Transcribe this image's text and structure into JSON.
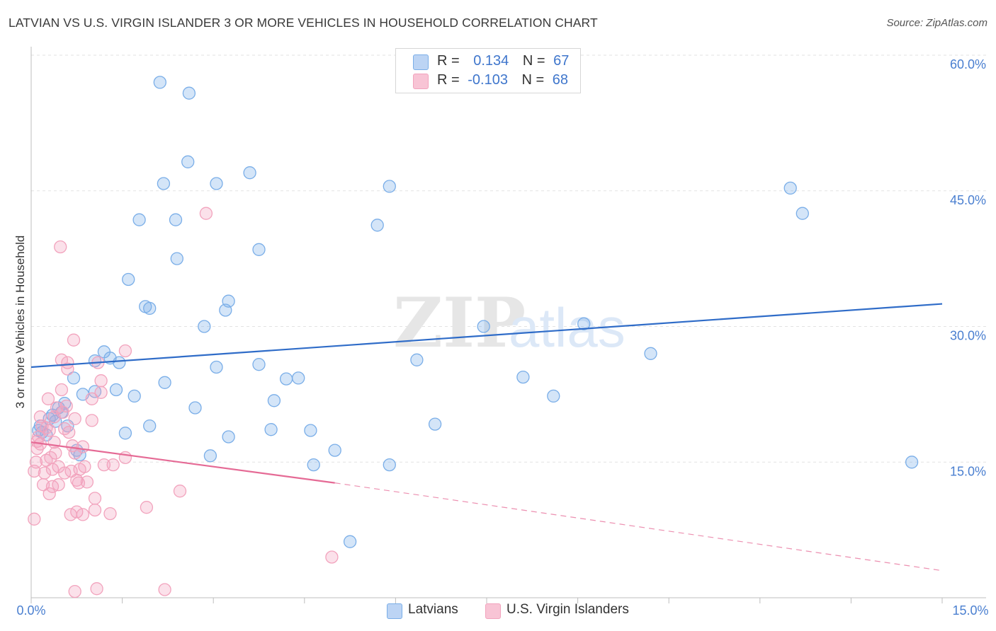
{
  "chart_data": {
    "type": "scatter",
    "title": "LATVIAN VS U.S. VIRGIN ISLANDER 3 OR MORE VEHICLES IN HOUSEHOLD CORRELATION CHART",
    "source": "Source: ZipAtlas.com",
    "xlabel": "",
    "ylabel": "3 or more Vehicles in Household",
    "xlim": [
      0,
      15
    ],
    "ylim": [
      0,
      60
    ],
    "x_tick_labels": [
      "0.0%",
      "15.0%"
    ],
    "y_tick_values": [
      15,
      30,
      45,
      60
    ],
    "y_tick_labels": [
      "15.0%",
      "30.0%",
      "45.0%",
      "60.0%"
    ],
    "watermark": [
      "ZIP",
      "atlas"
    ],
    "series": [
      {
        "name": "Latvians",
        "color": "#7aaee8",
        "line_color": "#2f6cc8",
        "r_label": "R =",
        "r_value": "0.134",
        "n_label": "N =",
        "n_value": "67",
        "trend": {
          "x": [
            0,
            15
          ],
          "y": [
            25.5,
            32.5
          ],
          "dashed_to": null
        },
        "points": [
          [
            0.12,
            18.5
          ],
          [
            0.15,
            19.0
          ],
          [
            0.18,
            18.3
          ],
          [
            0.25,
            18.0
          ],
          [
            0.3,
            19.8
          ],
          [
            0.35,
            20.2
          ],
          [
            0.4,
            19.5
          ],
          [
            0.45,
            21.0
          ],
          [
            0.5,
            20.5
          ],
          [
            0.55,
            21.5
          ],
          [
            0.6,
            19.0
          ],
          [
            0.75,
            16.3
          ],
          [
            0.8,
            15.8
          ],
          [
            0.7,
            24.3
          ],
          [
            0.85,
            22.5
          ],
          [
            1.05,
            26.2
          ],
          [
            1.2,
            27.2
          ],
          [
            1.3,
            26.5
          ],
          [
            1.45,
            26.0
          ],
          [
            1.05,
            22.8
          ],
          [
            1.4,
            23.0
          ],
          [
            1.7,
            22.3
          ],
          [
            1.55,
            18.2
          ],
          [
            1.95,
            19.0
          ],
          [
            1.6,
            35.2
          ],
          [
            1.78,
            41.8
          ],
          [
            1.88,
            32.2
          ],
          [
            1.95,
            32.0
          ],
          [
            2.18,
            45.8
          ],
          [
            2.12,
            57.0
          ],
          [
            2.38,
            41.8
          ],
          [
            2.4,
            37.5
          ],
          [
            2.2,
            23.8
          ],
          [
            2.58,
            48.2
          ],
          [
            2.7,
            21.0
          ],
          [
            2.6,
            55.8
          ],
          [
            2.85,
            30.0
          ],
          [
            2.95,
            15.7
          ],
          [
            3.05,
            25.5
          ],
          [
            3.05,
            45.8
          ],
          [
            3.2,
            31.8
          ],
          [
            3.25,
            32.8
          ],
          [
            3.25,
            17.8
          ],
          [
            3.6,
            47.0
          ],
          [
            3.75,
            38.5
          ],
          [
            3.75,
            25.8
          ],
          [
            3.95,
            18.6
          ],
          [
            4.0,
            21.8
          ],
          [
            4.2,
            24.2
          ],
          [
            4.4,
            24.3
          ],
          [
            4.6,
            18.5
          ],
          [
            4.65,
            14.7
          ],
          [
            5.0,
            16.3
          ],
          [
            5.25,
            6.2
          ],
          [
            5.7,
            41.2
          ],
          [
            5.9,
            45.5
          ],
          [
            5.9,
            14.7
          ],
          [
            6.35,
            26.3
          ],
          [
            6.65,
            19.2
          ],
          [
            7.45,
            30.0
          ],
          [
            8.1,
            24.4
          ],
          [
            8.6,
            22.3
          ],
          [
            9.1,
            30.3
          ],
          [
            10.2,
            27.0
          ],
          [
            12.5,
            45.3
          ],
          [
            12.7,
            42.5
          ],
          [
            14.5,
            15.0
          ]
        ]
      },
      {
        "name": "U.S. Virgin Islanders",
        "color": "#f2a3bd",
        "line_color": "#e56a95",
        "r_label": "R =",
        "r_value": "-0.103",
        "n_label": "N =",
        "n_value": "68",
        "trend": {
          "x": [
            0,
            5
          ],
          "y": [
            17.2,
            12.7
          ],
          "dashed_to": [
            15,
            3.0
          ]
        },
        "points": [
          [
            0.05,
            8.7
          ],
          [
            0.05,
            14.0
          ],
          [
            0.08,
            15.0
          ],
          [
            0.1,
            16.5
          ],
          [
            0.1,
            17.3
          ],
          [
            0.12,
            17.8
          ],
          [
            0.15,
            17.0
          ],
          [
            0.15,
            20.0
          ],
          [
            0.18,
            19.0
          ],
          [
            0.2,
            12.5
          ],
          [
            0.22,
            13.8
          ],
          [
            0.25,
            18.8
          ],
          [
            0.25,
            15.2
          ],
          [
            0.28,
            22.0
          ],
          [
            0.3,
            18.5
          ],
          [
            0.3,
            11.5
          ],
          [
            0.35,
            12.3
          ],
          [
            0.35,
            14.2
          ],
          [
            0.38,
            20.0
          ],
          [
            0.38,
            17.2
          ],
          [
            0.4,
            16.0
          ],
          [
            0.42,
            21.0
          ],
          [
            0.45,
            12.5
          ],
          [
            0.45,
            14.5
          ],
          [
            0.48,
            38.8
          ],
          [
            0.5,
            26.3
          ],
          [
            0.5,
            23.0
          ],
          [
            0.52,
            20.5
          ],
          [
            0.55,
            18.7
          ],
          [
            0.55,
            13.8
          ],
          [
            0.6,
            26.0
          ],
          [
            0.6,
            25.3
          ],
          [
            0.62,
            18.3
          ],
          [
            0.65,
            9.2
          ],
          [
            0.68,
            16.8
          ],
          [
            0.7,
            28.5
          ],
          [
            0.72,
            0.7
          ],
          [
            0.72,
            19.8
          ],
          [
            0.72,
            16.0
          ],
          [
            0.75,
            13.0
          ],
          [
            0.75,
            9.5
          ],
          [
            0.78,
            12.7
          ],
          [
            0.8,
            14.2
          ],
          [
            0.85,
            16.7
          ],
          [
            0.85,
            9.2
          ],
          [
            0.88,
            14.5
          ],
          [
            0.92,
            12.8
          ],
          [
            1.0,
            19.6
          ],
          [
            1.0,
            22.0
          ],
          [
            1.05,
            11.0
          ],
          [
            1.05,
            9.7
          ],
          [
            1.08,
            1.0
          ],
          [
            1.1,
            26.0
          ],
          [
            1.15,
            24.0
          ],
          [
            1.15,
            22.7
          ],
          [
            1.2,
            14.7
          ],
          [
            1.3,
            9.3
          ],
          [
            1.35,
            14.7
          ],
          [
            1.55,
            27.3
          ],
          [
            1.55,
            15.5
          ],
          [
            1.9,
            10.0
          ],
          [
            2.2,
            0.9
          ],
          [
            2.45,
            11.8
          ],
          [
            2.88,
            42.5
          ],
          [
            4.95,
            4.5
          ],
          [
            0.32,
            15.5
          ],
          [
            0.58,
            21.2
          ],
          [
            0.66,
            14.0
          ]
        ]
      }
    ]
  }
}
